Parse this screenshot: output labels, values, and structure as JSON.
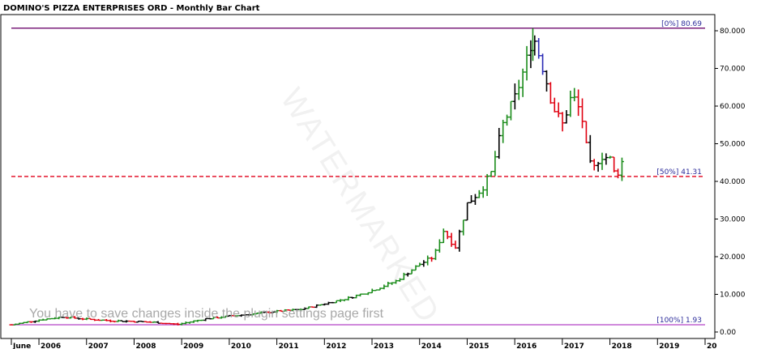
{
  "chart_data": {
    "type": "ohlc-bar",
    "title": "DOMINO'S PIZZA ENTERPRISES ORD - Monthly Bar Chart",
    "ylim": [
      0,
      85
    ],
    "yticks": [
      0,
      10,
      20,
      30,
      40,
      50,
      60,
      70,
      80
    ],
    "ytick_labels": [
      "0.00",
      "10.000",
      "20.000",
      "30.000",
      "40.000",
      "50.000",
      "60.000",
      "70.000",
      "80.000"
    ],
    "xlim": [
      2005.42,
      2020.0
    ],
    "xticks": [
      {
        "year": 2005.42,
        "label": "June"
      },
      {
        "year": 2006,
        "label": "2006"
      },
      {
        "year": 2007,
        "label": "2007"
      },
      {
        "year": 2008,
        "label": "2008"
      },
      {
        "year": 2009,
        "label": "2009"
      },
      {
        "year": 2010,
        "label": "2010"
      },
      {
        "year": 2011,
        "label": "2011"
      },
      {
        "year": 2012,
        "label": "2012"
      },
      {
        "year": 2013,
        "label": "2013"
      },
      {
        "year": 2014,
        "label": "2014"
      },
      {
        "year": 2015,
        "label": "2015"
      },
      {
        "year": 2016,
        "label": "2016"
      },
      {
        "year": 2017,
        "label": "2017"
      },
      {
        "year": 2018,
        "label": "2018"
      },
      {
        "year": 2019,
        "label": "2019"
      },
      {
        "year": 2020,
        "label": "20"
      }
    ],
    "levels": [
      {
        "value": 80.69,
        "label": "[0%] 80.69",
        "color": "#7b1f7b",
        "style": "solid"
      },
      {
        "value": 41.31,
        "label": "[50%] 41.31",
        "color": "#e0001a",
        "style": "dashed"
      },
      {
        "value": 1.93,
        "label": "[100%] 1.93",
        "color": "#bb55cc",
        "style": "solid"
      }
    ],
    "anchors": [
      [
        2005.42,
        1.9
      ],
      [
        2006.0,
        3.2
      ],
      [
        2006.5,
        4.0
      ],
      [
        2007.0,
        3.4
      ],
      [
        2007.5,
        3.0
      ],
      [
        2008.0,
        2.8
      ],
      [
        2008.5,
        2.5
      ],
      [
        2008.9,
        2.0
      ],
      [
        2009.5,
        3.5
      ],
      [
        2010.0,
        4.2
      ],
      [
        2010.5,
        4.8
      ],
      [
        2011.0,
        5.5
      ],
      [
        2011.5,
        6.0
      ],
      [
        2012.0,
        7.5
      ],
      [
        2012.5,
        9.0
      ],
      [
        2013.0,
        11.0
      ],
      [
        2013.5,
        13.5
      ],
      [
        2014.0,
        18.0
      ],
      [
        2014.3,
        20.0
      ],
      [
        2014.5,
        27.0
      ],
      [
        2014.75,
        22.5
      ],
      [
        2015.0,
        34.0
      ],
      [
        2015.3,
        38.0
      ],
      [
        2015.5,
        42.0
      ],
      [
        2015.75,
        55.0
      ],
      [
        2016.0,
        62.0
      ],
      [
        2016.25,
        72.0
      ],
      [
        2016.38,
        79.0
      ],
      [
        2016.6,
        70.0
      ],
      [
        2016.8,
        60.0
      ],
      [
        2017.0,
        55.0
      ],
      [
        2017.2,
        63.0
      ],
      [
        2017.4,
        58.0
      ],
      [
        2017.55,
        45.0
      ],
      [
        2017.65,
        43.0
      ],
      [
        2017.8,
        47.0
      ],
      [
        2018.0,
        46.0
      ],
      [
        2018.12,
        41.0
      ],
      [
        2018.25,
        45.0
      ],
      [
        2018.33,
        48.0
      ]
    ],
    "colors": {
      "up": "#1a8c1a",
      "down": "#e00010",
      "neutral": "#000000",
      "special": "#2a2ab5"
    },
    "watermark": "WATERMARKED",
    "notice": "You have to save changes inside the plugin settings page first"
  }
}
